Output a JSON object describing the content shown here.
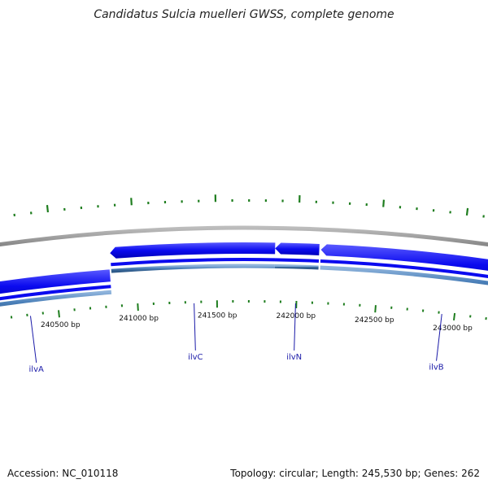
{
  "title": "Candidatus Sulcia muelleri GWSS, complete genome",
  "footer": {
    "accession": "Accession: NC_010118",
    "summary": "Topology: circular; Length: 245,530 bp; Genes: 262"
  },
  "position_labels": [
    {
      "text": "240500 bp",
      "bp": 240500
    },
    {
      "text": "241000 bp",
      "bp": 241000
    },
    {
      "text": "241500 bp",
      "bp": 241500
    },
    {
      "text": "242000 bp",
      "bp": 242000
    },
    {
      "text": "242500 bp",
      "bp": 242500
    },
    {
      "text": "243000 bp",
      "bp": 243000
    }
  ],
  "genes": [
    {
      "name": "ilvA",
      "strand": "+",
      "start": 239800,
      "end": 240840
    },
    {
      "name": "ilvC",
      "strand": "-",
      "start": 240850,
      "end": 241860
    },
    {
      "name": "ilvN",
      "strand": "-",
      "start": 241860,
      "end": 242130
    },
    {
      "name": "ilvB",
      "strand": "-",
      "start": 242140,
      "end": 243700
    }
  ],
  "colors": {
    "gene": "#0b0bef",
    "cds": "#4a7fb8",
    "backbone": "#8a8a8a",
    "gc_skew": "#1e7d1e",
    "gene_label": "#1a1aa8",
    "title": "#222222"
  }
}
